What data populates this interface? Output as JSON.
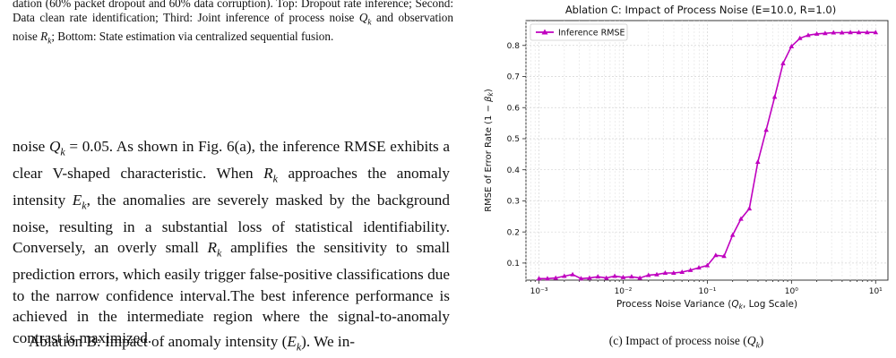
{
  "left": {
    "caption_fragment": "dation (60% packet dropout and 60% data corruption). Top: Dropout rate inference; Second: Data clean rate identification; Third: Joint inference of process noise Q_k and observation noise R_k; Bottom: State estimation via centralized sequential fusion.",
    "para1": "noise Q_k = 0.05. As shown in Fig. 6(a), the inference RMSE exhibits a clear V-shaped characteristic. When R_k approaches the anomaly intensity E_k, the anomalies are severely masked by the background noise, resulting in a substantial loss of statistical identifiability. Conversely, an overly small R_k amplifies the sensitivity to small prediction errors, which easily trigger false-positive classifications due to the narrow confidence interval.The best inference performance is achieved in the intermediate region where the signal-to-anomaly contrast is maximized.",
    "para2": "Ablation B: Impact of anomaly intensity (E_k). We in-"
  },
  "figure": {
    "caption": "(c) Impact of process noise (Q_k)"
  },
  "chart_data": {
    "type": "line",
    "title": "Ablation C: Impact of Process Noise (E=10.0, R=1.0)",
    "xlabel": "Process Noise Variance (Q_k, Log Scale)",
    "ylabel": "RMSE of Error Rate (1 − β_k)",
    "xscale": "log",
    "xlim": [
      0.0007,
      14
    ],
    "ylim": [
      0.045,
      0.88
    ],
    "x_ticks": [
      "10⁻³",
      "10⁻²",
      "10⁻¹",
      "10⁰",
      "10¹"
    ],
    "y_ticks": [
      0.1,
      0.2,
      0.3,
      0.4,
      0.5,
      0.6,
      0.7,
      0.8
    ],
    "grid": true,
    "legend_position": "top-left",
    "series": [
      {
        "name": "Inference RMSE",
        "color": "#bf00bf",
        "x": [
          0.001,
          0.00126,
          0.00158,
          0.002,
          0.00251,
          0.00316,
          0.00398,
          0.00501,
          0.00631,
          0.00794,
          0.01,
          0.0126,
          0.0158,
          0.02,
          0.0251,
          0.0316,
          0.0398,
          0.0501,
          0.0631,
          0.0794,
          0.1,
          0.126,
          0.158,
          0.2,
          0.251,
          0.316,
          0.398,
          0.501,
          0.631,
          0.794,
          1.0,
          1.26,
          1.58,
          2.0,
          2.51,
          3.16,
          3.98,
          5.01,
          6.31,
          7.94,
          10.0
        ],
        "y": [
          0.05,
          0.05,
          0.052,
          0.058,
          0.063,
          0.05,
          0.052,
          0.056,
          0.052,
          0.058,
          0.054,
          0.056,
          0.052,
          0.061,
          0.063,
          0.068,
          0.068,
          0.071,
          0.077,
          0.085,
          0.092,
          0.125,
          0.122,
          0.19,
          0.242,
          0.275,
          0.425,
          0.528,
          0.634,
          0.742,
          0.797,
          0.823,
          0.833,
          0.837,
          0.839,
          0.841,
          0.841,
          0.842,
          0.842,
          0.842,
          0.842
        ]
      }
    ]
  }
}
